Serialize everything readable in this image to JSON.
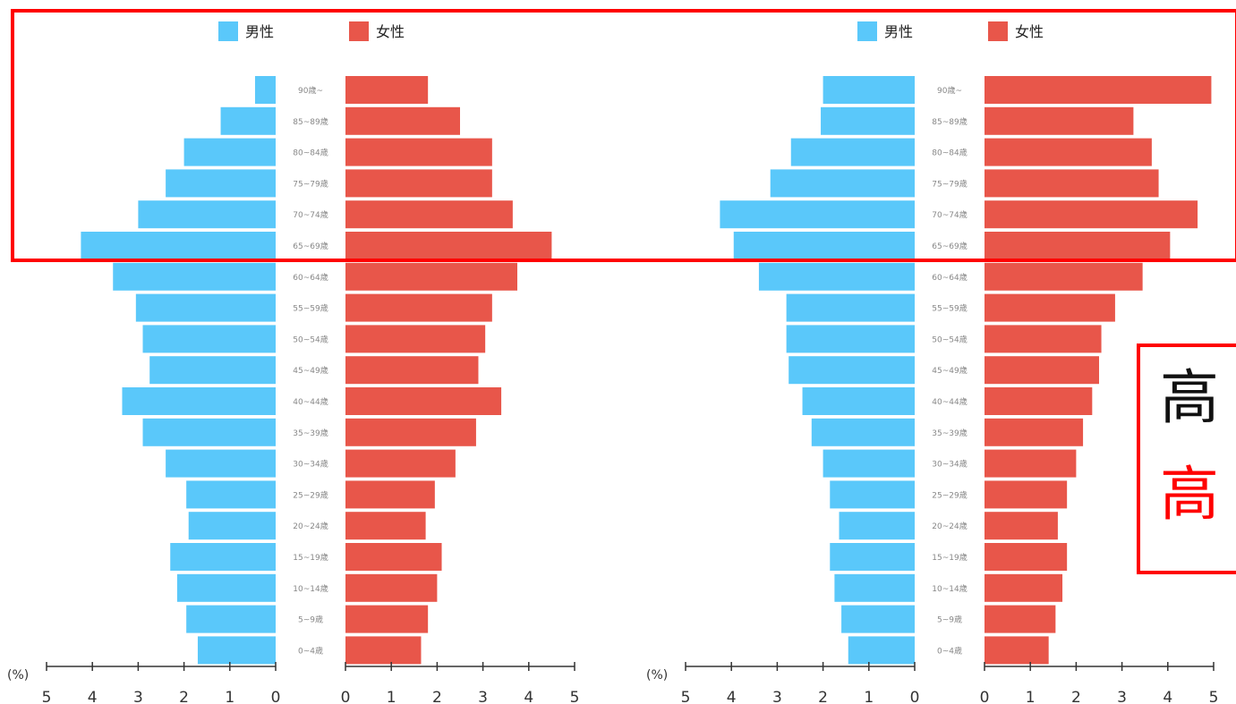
{
  "chart_data": [
    {
      "type": "bar",
      "orientation": "horizontal",
      "subtype": "population-pyramid",
      "categories": [
        "0~4歳",
        "5~9歳",
        "10~14歳",
        "15~19歳",
        "20~24歳",
        "25~29歳",
        "30~34歳",
        "35~39歳",
        "40~44歳",
        "45~49歳",
        "50~54歳",
        "55~59歳",
        "60~64歳",
        "65~69歳",
        "70~74歳",
        "75~79歳",
        "80~84歳",
        "85~89歳",
        "90歳~"
      ],
      "series": [
        {
          "name": "男性",
          "color": "#5ac8fa",
          "values": [
            1.7,
            1.95,
            2.15,
            2.3,
            1.9,
            1.95,
            2.4,
            2.9,
            3.35,
            2.75,
            2.9,
            3.05,
            3.55,
            4.25,
            3.0,
            2.4,
            2.0,
            1.2,
            0.45
          ]
        },
        {
          "name": "女性",
          "color": "#e8564a",
          "values": [
            1.65,
            1.8,
            2.0,
            2.1,
            1.75,
            1.95,
            2.4,
            2.85,
            3.4,
            2.9,
            3.05,
            3.2,
            3.75,
            4.5,
            3.65,
            3.2,
            3.2,
            2.5,
            1.8
          ]
        }
      ],
      "unit_label": "(%)",
      "xlim": [
        0,
        5
      ],
      "ticks": [
        "5",
        "4",
        "3",
        "2",
        "1",
        "0"
      ],
      "ticks_right": [
        "0",
        "1",
        "2",
        "3",
        "4",
        "5"
      ],
      "legend_position": "top"
    },
    {
      "type": "bar",
      "orientation": "horizontal",
      "subtype": "population-pyramid",
      "categories": [
        "0~4歳",
        "5~9歳",
        "10~14歳",
        "15~19歳",
        "20~24歳",
        "25~29歳",
        "30~34歳",
        "35~39歳",
        "40~44歳",
        "45~49歳",
        "50~54歳",
        "55~59歳",
        "60~64歳",
        "65~69歳",
        "70~74歳",
        "75~79歳",
        "80~84歳",
        "85~89歳",
        "90歳~"
      ],
      "series": [
        {
          "name": "男性",
          "color": "#5ac8fa",
          "values": [
            1.45,
            1.6,
            1.75,
            1.85,
            1.65,
            1.85,
            2.0,
            2.25,
            2.45,
            2.75,
            2.8,
            2.8,
            3.4,
            3.95,
            4.25,
            3.15,
            2.7,
            2.05,
            2.0
          ]
        },
        {
          "name": "女性",
          "color": "#e8564a",
          "values": [
            1.4,
            1.55,
            1.7,
            1.8,
            1.6,
            1.8,
            2.0,
            2.15,
            2.35,
            2.5,
            2.55,
            2.85,
            3.45,
            4.05,
            4.65,
            3.8,
            3.65,
            3.25,
            4.95
          ]
        }
      ],
      "unit_label": "(%)",
      "xlim": [
        0,
        5
      ],
      "ticks": [
        "5",
        "4",
        "3",
        "2",
        "1",
        "0"
      ],
      "ticks_right": [
        "0",
        "1",
        "2",
        "3",
        "4",
        "5"
      ],
      "legend_position": "top"
    }
  ],
  "callout": {
    "line1": "高",
    "line2": "高"
  },
  "colors": {
    "male": "#5ac8fa",
    "female": "#e8564a",
    "highlight": "#ff0000",
    "axis": "#333333"
  }
}
